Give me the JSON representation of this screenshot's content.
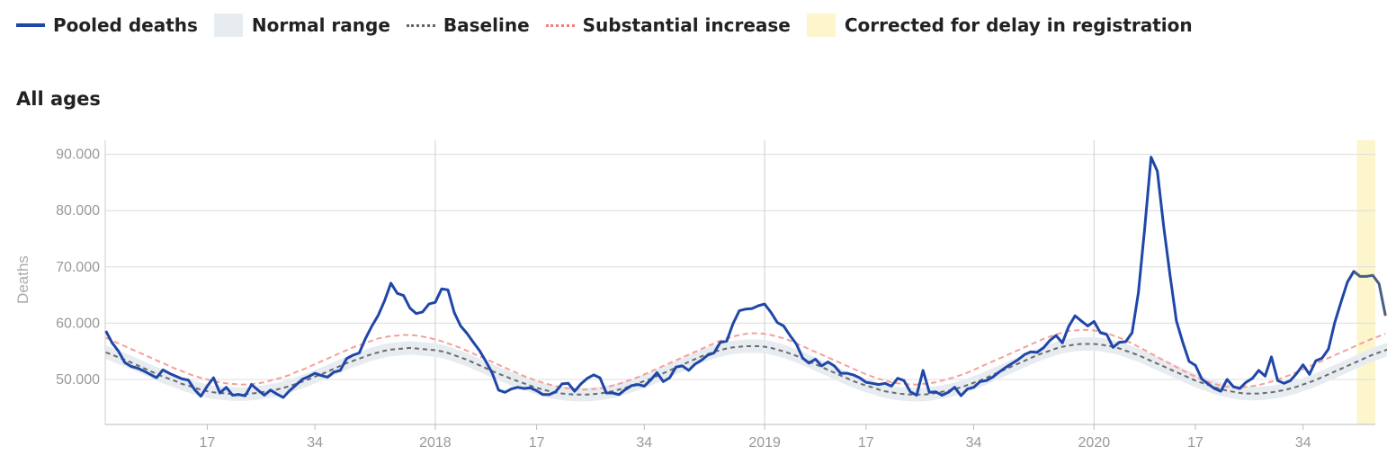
{
  "legend": [
    {
      "label": "Pooled deaths",
      "color": "#1f46a8",
      "kind": "line"
    },
    {
      "label": "Normal range",
      "color": "#e7ecf1",
      "kind": "box"
    },
    {
      "label": "Baseline",
      "color": "#666666",
      "kind": "dash"
    },
    {
      "label": "Substantial increase",
      "color": "#f08080",
      "kind": "dash"
    },
    {
      "label": "Corrected for delay in registration",
      "color": "#fdf6cc",
      "kind": "box"
    }
  ],
  "subtitle": "All ages",
  "chart_data": {
    "type": "line",
    "title": "All ages",
    "ylabel": "Deaths",
    "xlabel": "",
    "ylim": [
      42000,
      92500
    ],
    "yticks": [
      50000,
      60000,
      70000,
      80000,
      90000
    ],
    "ytick_labels": [
      "50.000",
      "60.000",
      "70.000",
      "80.000",
      "90.000"
    ],
    "x_range": [
      0.9,
      201.4
    ],
    "xticks": [
      {
        "x": 17,
        "label": "17"
      },
      {
        "x": 34,
        "label": "34"
      },
      {
        "x": 53,
        "label": "2018"
      },
      {
        "x": 69,
        "label": "17"
      },
      {
        "x": 86,
        "label": "34"
      },
      {
        "x": 105,
        "label": "2019"
      },
      {
        "x": 121,
        "label": "17"
      },
      {
        "x": 138,
        "label": "34"
      },
      {
        "x": 157,
        "label": "2020"
      },
      {
        "x": 173,
        "label": "17"
      },
      {
        "x": 190,
        "label": "34"
      }
    ],
    "x_gridlines": [
      53,
      105,
      157
    ],
    "x_index_note": "Weeks numbered consecutively from ISO week 1 of 2017",
    "shaded_regions": [
      {
        "label": "Corrected for delay in registration",
        "x_start": 198.5,
        "x_end": 201.4
      }
    ],
    "series": [
      {
        "name": "Pooled deaths",
        "x_start": 1,
        "values": [
          58600,
          56500,
          55000,
          53000,
          52300,
          52000,
          51500,
          50900,
          50300,
          51700,
          51100,
          50600,
          50100,
          49900,
          48200,
          47000,
          48800,
          50300,
          47600,
          48600,
          47200,
          47300,
          47100,
          49100,
          48100,
          47200,
          48100,
          47400,
          46800,
          48000,
          49000,
          50000,
          50500,
          51100,
          50700,
          50400,
          51300,
          51600,
          53700,
          54300,
          54700,
          57300,
          59500,
          61400,
          64000,
          67100,
          65300,
          64900,
          62700,
          61700,
          62000,
          63400,
          63700,
          66100,
          65900,
          61900,
          59500,
          58200,
          56600,
          55100,
          53200,
          51100,
          48100,
          47700,
          48300,
          48600,
          48400,
          48500,
          48000,
          47300,
          47300,
          47800,
          49200,
          49300,
          47900,
          49200,
          50200,
          50800,
          50300,
          47600,
          47600,
          47300,
          48200,
          48900,
          49100,
          48800,
          49900,
          51200,
          49600,
          50300,
          52200,
          52400,
          51600,
          52700,
          53400,
          54300,
          54700,
          56600,
          56800,
          59900,
          62200,
          62500,
          62600,
          63100,
          63400,
          61900,
          60100,
          59500,
          57800,
          56300,
          53800,
          52900,
          53600,
          52400,
          53100,
          52400,
          51100,
          51100,
          50800,
          50300,
          49500,
          49300,
          49100,
          49300,
          48800,
          50200,
          49800,
          47800,
          47200,
          51600,
          47700,
          47800,
          47200,
          47700,
          48600,
          47100,
          48300,
          48600,
          49600,
          49800,
          50400,
          51300,
          52100,
          52800,
          53500,
          54400,
          54900,
          54800,
          55600,
          56900,
          57800,
          56500,
          59400,
          61300,
          60400,
          59500,
          60300,
          58300,
          58000,
          55700,
          56600,
          56700,
          58300,
          65400,
          77000,
          89500,
          87000,
          77100,
          68500,
          60400,
          56600,
          53200,
          52500,
          50100,
          49200,
          48400,
          47900,
          50000,
          48700,
          48400,
          49500,
          50200,
          51600,
          50600,
          54000,
          49800,
          49300,
          49800,
          51100,
          52600,
          50900,
          53300,
          53800,
          55400,
          60100,
          63800,
          67300,
          69200,
          68300,
          68300,
          68500,
          67000,
          61300
        ]
      },
      {
        "name": "Baseline",
        "x_start": 1,
        "values": [
          54800,
          54400,
          53900,
          53500,
          53000,
          52500,
          52000,
          51500,
          51000,
          50500,
          50100,
          49700,
          49200,
          48900,
          48500,
          48200,
          47900,
          47700,
          47600,
          47500,
          47400,
          47400,
          47400,
          47500,
          47600,
          47800,
          48000,
          48200,
          48500,
          48800,
          49200,
          49600,
          50000,
          50500,
          50900,
          51400,
          51900,
          52400,
          52900,
          53300,
          53700,
          54100,
          54500,
          54800,
          55100,
          55300,
          55400,
          55500,
          55600,
          55500,
          55400,
          55300,
          55200,
          55000,
          54700,
          54300,
          53900,
          53500,
          53000,
          52500,
          52000,
          51500,
          51000,
          50600,
          50100,
          49700,
          49300,
          48900,
          48500,
          48200,
          47900,
          47700,
          47500,
          47400,
          47300,
          47300,
          47300,
          47400,
          47500,
          47700,
          47900,
          48200,
          48500,
          48900,
          49300,
          49700,
          50100,
          50600,
          51100,
          51600,
          52100,
          52600,
          53100,
          53600,
          54100,
          54500,
          54900,
          55200,
          55500,
          55700,
          55800,
          55900,
          55900,
          55900,
          55800,
          55600,
          55300,
          55000,
          54600,
          54200,
          53700,
          53200,
          52700,
          52200,
          51700,
          51200,
          50700,
          50200,
          49700,
          49300,
          48900,
          48600,
          48200,
          47900,
          47700,
          47500,
          47400,
          47300,
          47300,
          47300,
          47400,
          47600,
          47800,
          48000,
          48300,
          48600,
          49000,
          49400,
          49800,
          50300,
          50800,
          51300,
          51800,
          52300,
          52800,
          53300,
          53800,
          54300,
          54700,
          55100,
          55500,
          55800,
          56000,
          56200,
          56300,
          56300,
          56300,
          56200,
          56000,
          55800,
          55500,
          55100,
          54700,
          54300,
          53800,
          53300,
          52800,
          52300,
          51800,
          51300,
          50800,
          50300,
          49800,
          49400,
          49000,
          48600,
          48300,
          48000,
          47800,
          47600,
          47500,
          47500,
          47500,
          47600,
          47700,
          47900,
          48100,
          48400,
          48700,
          49100,
          49500,
          49900,
          50400,
          50900,
          51400,
          51900,
          52400,
          52900,
          53400,
          53900,
          54400,
          54800,
          55200,
          55500
        ]
      },
      {
        "name": "Substantial increase",
        "x_start": 1,
        "values": [
          57400,
          56900,
          56400,
          55900,
          55400,
          54900,
          54400,
          53900,
          53400,
          52900,
          52400,
          51900,
          51500,
          51000,
          50600,
          50300,
          50000,
          49700,
          49500,
          49300,
          49200,
          49100,
          49100,
          49200,
          49300,
          49500,
          49800,
          50100,
          50400,
          50800,
          51300,
          51700,
          52200,
          52700,
          53200,
          53700,
          54200,
          54700,
          55200,
          55700,
          56100,
          56500,
          56900,
          57300,
          57500,
          57700,
          57800,
          57900,
          57900,
          57800,
          57600,
          57400,
          57100,
          56800,
          56400,
          56000,
          55600,
          55100,
          54600,
          54100,
          53600,
          53100,
          52600,
          52100,
          51600,
          51100,
          50600,
          50200,
          49800,
          49400,
          49100,
          48800,
          48600,
          48400,
          48300,
          48200,
          48200,
          48300,
          48400,
          48600,
          48900,
          49200,
          49600,
          50000,
          50400,
          50900,
          51400,
          51900,
          52400,
          52900,
          53400,
          53900,
          54400,
          54900,
          55400,
          55900,
          56400,
          56900,
          57300,
          57600,
          57900,
          58100,
          58200,
          58200,
          58100,
          57900,
          57600,
          57300,
          56900,
          56400,
          55900,
          55400,
          54900,
          54400,
          53900,
          53400,
          52900,
          52400,
          51900,
          51400,
          50900,
          50500,
          50100,
          49800,
          49500,
          49300,
          49200,
          49100,
          49100,
          49200,
          49300,
          49500,
          49800,
          50100,
          50400,
          50800,
          51200,
          51700,
          52200,
          52700,
          53200,
          53700,
          54200,
          54700,
          55200,
          55700,
          56200,
          56700,
          57200,
          57600,
          58000,
          58300,
          58600,
          58700,
          58800,
          58800,
          58700,
          58500,
          58200,
          57800,
          57400,
          56900,
          56400,
          55800,
          55200,
          54600,
          54000,
          53400,
          52800,
          52200,
          51600,
          51000,
          50500,
          50000,
          49600,
          49200,
          48900,
          48700,
          48600,
          48600,
          48700,
          48800,
          49000,
          49300,
          49600,
          50000,
          50400,
          50800,
          51300,
          51800,
          52300,
          52800,
          53300,
          53800,
          54300,
          54800,
          55300,
          55800,
          56300,
          56800,
          57300,
          57700,
          58100
        ]
      },
      {
        "name": "Normal range",
        "x_start": 1,
        "half_width": 1200
      }
    ]
  }
}
